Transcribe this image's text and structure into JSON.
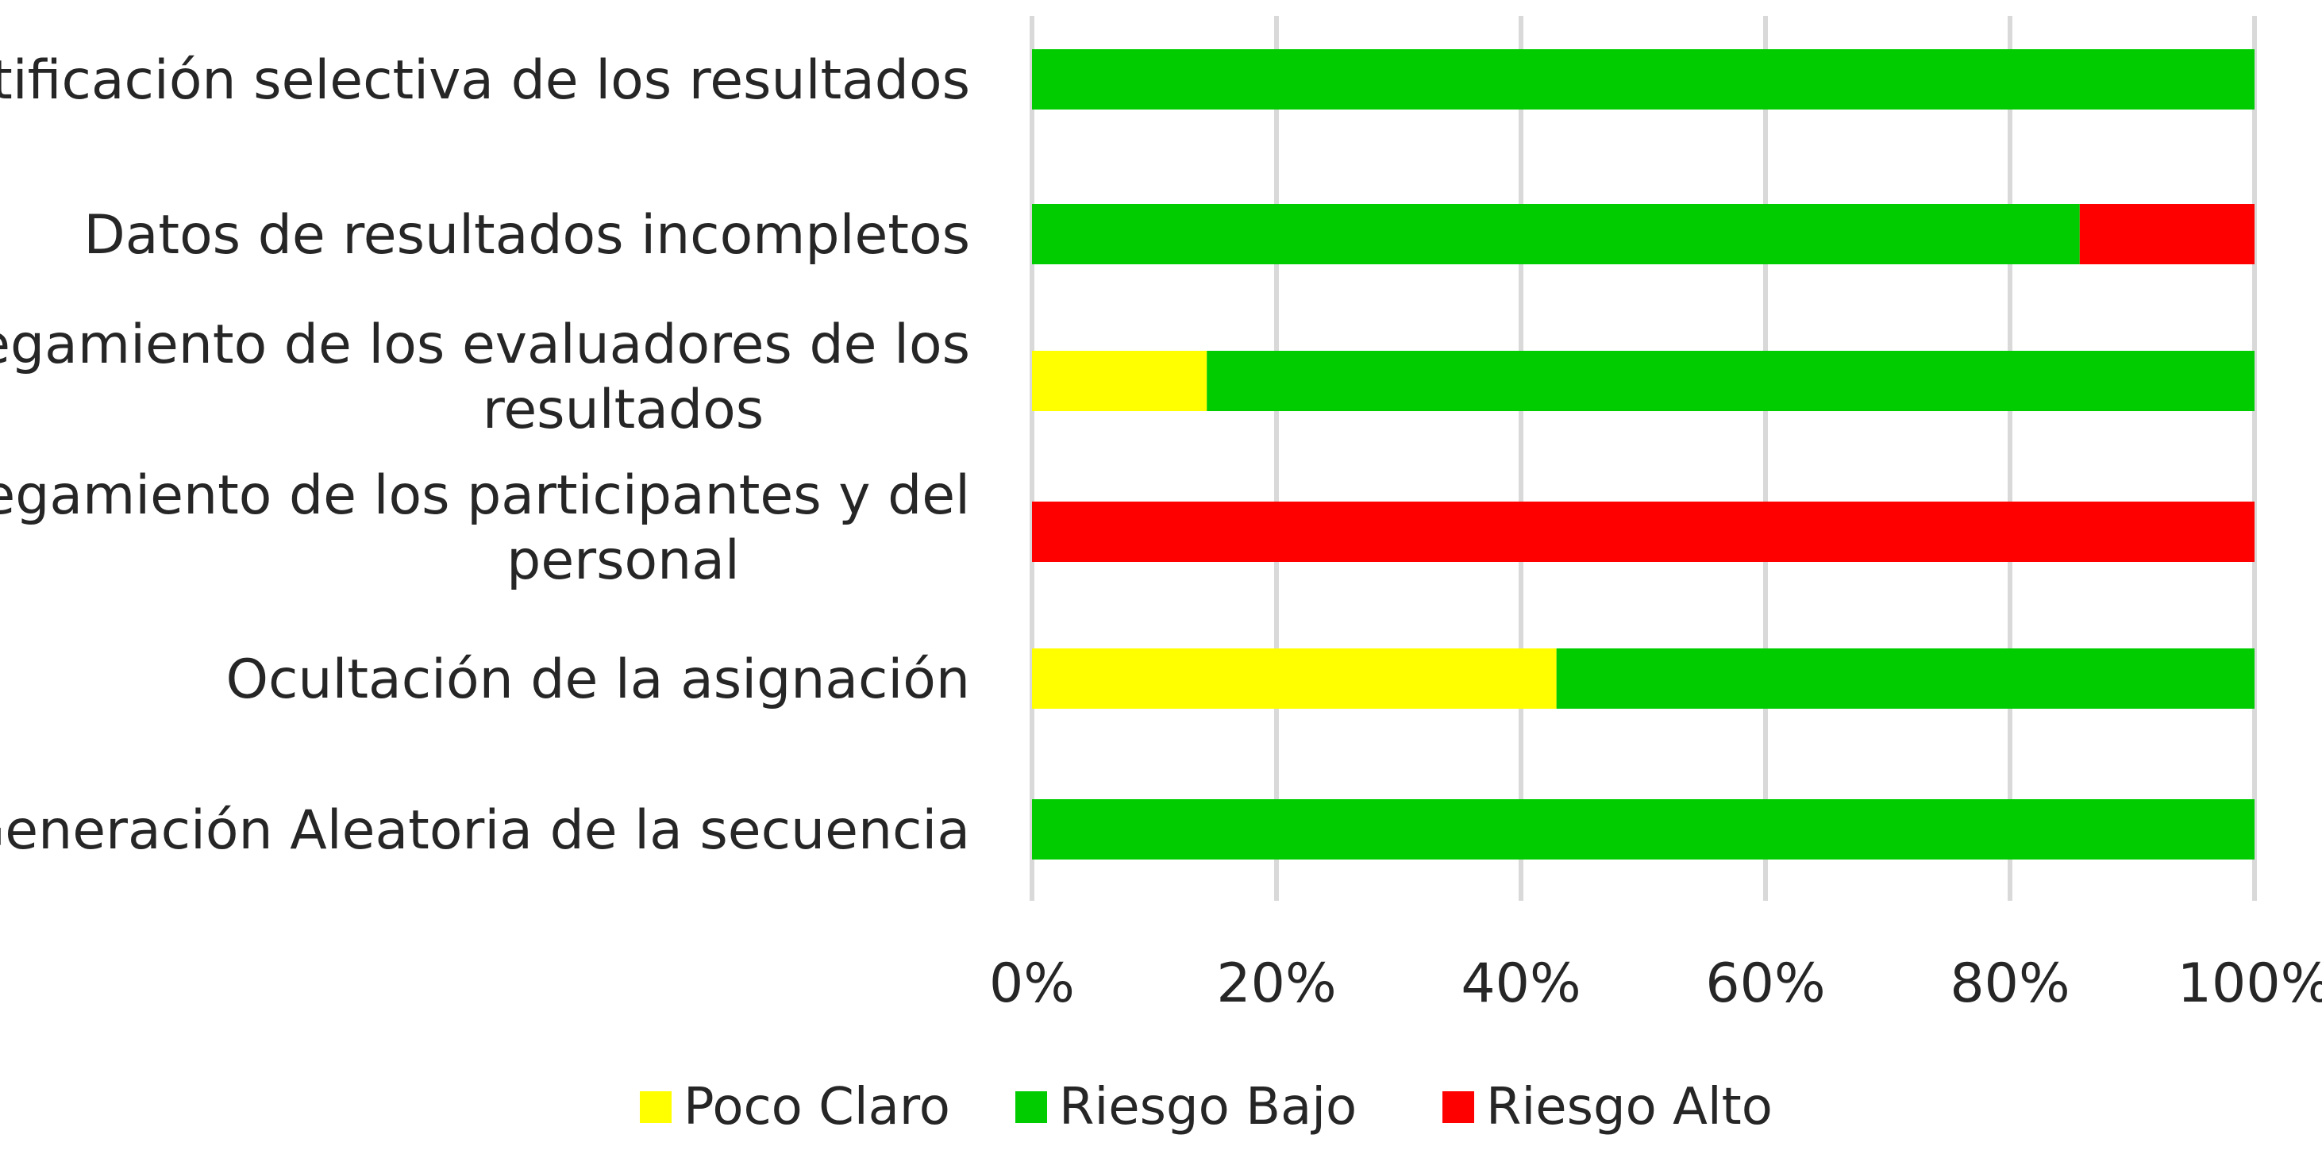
{
  "chart_data": {
    "type": "bar",
    "orientation": "horizontal",
    "stacked": "percent",
    "categories": [
      [
        "Notificación selectiva de los resultados"
      ],
      [
        "Datos de resultados incompletos"
      ],
      [
        "Cegamiento de los evaluadores de los",
        "resultados"
      ],
      [
        "Cegamiento de los participantes y del",
        "personal"
      ],
      [
        "Ocultación de la asignación"
      ],
      [
        "Generación Aleatoria de la secuencia"
      ]
    ],
    "series": [
      {
        "name": "Poco Claro",
        "color": "#ffff00",
        "values": [
          0,
          0,
          14.3,
          0,
          42.9,
          0
        ]
      },
      {
        "name": "Riesgo Bajo",
        "color": "#00cc00",
        "values": [
          100,
          85.7,
          85.7,
          0,
          57.1,
          100
        ]
      },
      {
        "name": "Riesgo Alto",
        "color": "#ff0000",
        "values": [
          0,
          14.3,
          0,
          100,
          0,
          0
        ]
      }
    ],
    "xticks": [
      "0%",
      "20%",
      "40%",
      "60%",
      "80%",
      "100%"
    ],
    "xlim": [
      0,
      100
    ],
    "grid": true,
    "legend_position": "bottom"
  }
}
